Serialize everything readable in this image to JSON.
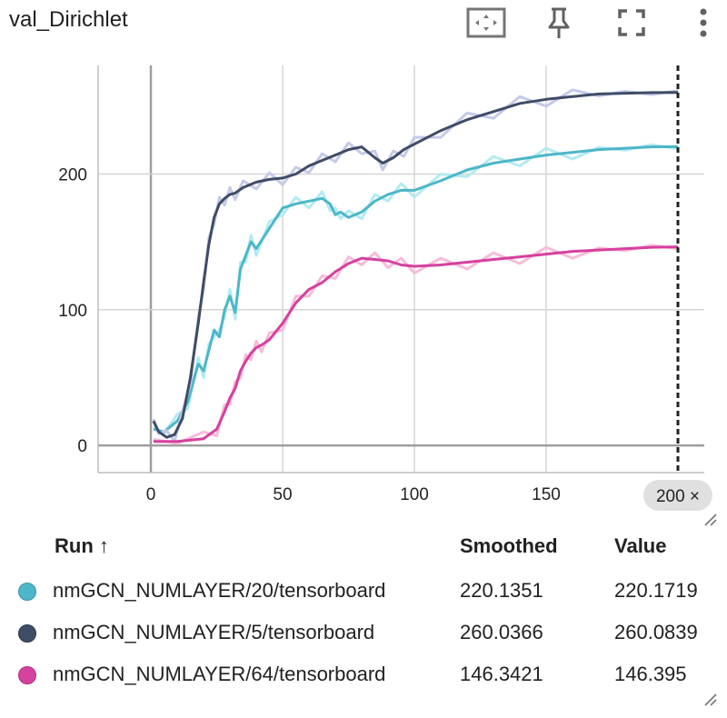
{
  "header": {
    "title": "val_Dirichlet",
    "toolbar": [
      {
        "name": "fit-domain-icon"
      },
      {
        "name": "pin-icon"
      },
      {
        "name": "fullscreen-icon"
      },
      {
        "name": "more-vert-icon"
      }
    ]
  },
  "chart_data": {
    "type": "line",
    "xlim": [
      -20,
      210
    ],
    "ylim": [
      -20,
      280
    ],
    "x_ticks": [
      0,
      50,
      100,
      150
    ],
    "y_ticks": [
      0,
      100,
      200
    ],
    "grid": true,
    "cursor": {
      "x": 200,
      "label": "200 ×"
    },
    "series": [
      {
        "name": "nmGCN_NUMLAYER/20/tensorboard",
        "color": "#4db6c8",
        "raw_color": "#b2ebf2",
        "x": [
          1,
          5,
          10,
          14,
          18,
          20,
          22,
          24,
          26,
          28,
          30,
          32,
          34,
          36,
          38,
          40,
          45,
          50,
          55,
          60,
          65,
          68,
          70,
          72,
          75,
          80,
          85,
          90,
          95,
          100,
          110,
          120,
          130,
          140,
          150,
          160,
          170,
          180,
          190,
          200
        ],
        "y": [
          12,
          10,
          18,
          32,
          60,
          55,
          70,
          85,
          80,
          100,
          110,
          98,
          130,
          140,
          150,
          145,
          160,
          175,
          178,
          180,
          182,
          178,
          170,
          172,
          168,
          172,
          180,
          185,
          188,
          188,
          195,
          203,
          208,
          211,
          214,
          216,
          218,
          219,
          220,
          220.1351
        ]
      },
      {
        "name": "nmGCN_NUMLAYER/5/tensorboard",
        "color": "#3f4c66",
        "raw_color": "#c5cae9",
        "x": [
          1,
          3,
          6,
          9,
          12,
          15,
          18,
          20,
          22,
          24,
          26,
          28,
          30,
          32,
          35,
          40,
          45,
          50,
          55,
          60,
          65,
          70,
          75,
          80,
          85,
          88,
          92,
          96,
          100,
          110,
          120,
          130,
          140,
          150,
          160,
          170,
          180,
          190,
          200
        ],
        "y": [
          18,
          10,
          6,
          8,
          20,
          50,
          90,
          120,
          148,
          168,
          178,
          182,
          185,
          186,
          190,
          194,
          196,
          197,
          200,
          206,
          210,
          214,
          218,
          220,
          212,
          208,
          212,
          218,
          222,
          232,
          240,
          246,
          252,
          255,
          257,
          259,
          259.5,
          260,
          260.0366
        ]
      },
      {
        "name": "nmGCN_NUMLAYER/64/tensorboard",
        "color": "#d6409f",
        "raw_color": "#f8bbd9",
        "x": [
          1,
          10,
          20,
          25,
          28,
          30,
          32,
          34,
          36,
          38,
          40,
          42,
          45,
          50,
          55,
          60,
          65,
          70,
          75,
          80,
          85,
          90,
          95,
          100,
          110,
          120,
          130,
          140,
          150,
          160,
          170,
          180,
          190,
          200
        ],
        "y": [
          3,
          3,
          5,
          12,
          25,
          35,
          42,
          55,
          62,
          68,
          72,
          74,
          78,
          90,
          105,
          115,
          120,
          128,
          134,
          138,
          137,
          136,
          133,
          132,
          133,
          135,
          137,
          139,
          141,
          143,
          144,
          145,
          146,
          146.3421
        ]
      }
    ]
  },
  "table": {
    "columns": {
      "run": "Run ↑",
      "smoothed": "Smoothed",
      "value": "Value"
    },
    "rows": [
      {
        "run": "nmGCN_NUMLAYER/20/tensorboard",
        "smoothed": "220.1351",
        "value": "220.1719",
        "color": "#4db6c8"
      },
      {
        "run": "nmGCN_NUMLAYER/5/tensorboard",
        "smoothed": "260.0366",
        "value": "260.0839",
        "color": "#3f4c66"
      },
      {
        "run": "nmGCN_NUMLAYER/64/tensorboard",
        "smoothed": "146.3421",
        "value": "146.395",
        "color": "#d6409f"
      }
    ]
  }
}
